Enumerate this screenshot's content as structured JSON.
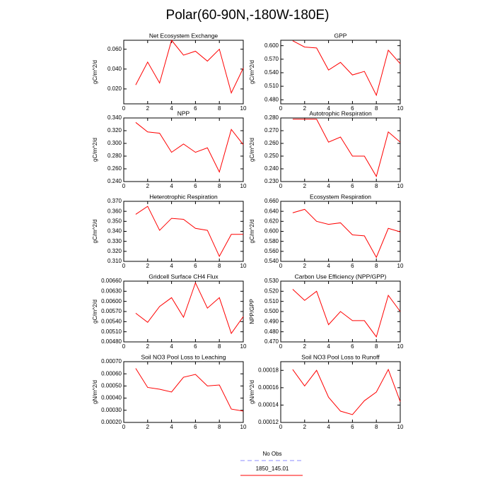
{
  "title": "Polar(60-90N,-180W-180E)",
  "legend": [
    {
      "name": "No Obs",
      "color": "#8c8cff",
      "dashed": true
    },
    {
      "name": "1850_145.01",
      "color": "#ff0000",
      "dashed": false
    }
  ],
  "chart_data": [
    {
      "type": "line",
      "title": "Net Ecosystem Exchange",
      "y_label": "gC/m^2/d",
      "x": [
        1,
        2,
        3,
        4,
        5,
        6,
        7,
        8,
        9,
        10
      ],
      "xlim": [
        0,
        10
      ],
      "xticks": [
        0,
        2,
        4,
        6,
        8,
        10
      ],
      "ylim": [
        0.005,
        0.069
      ],
      "yticks": [
        {
          "value": 0.02,
          "label": "0.020"
        },
        {
          "value": 0.04,
          "label": "0.040"
        },
        {
          "value": 0.06,
          "label": "0.060"
        }
      ],
      "color": "#ff0000",
      "values": [
        0.024,
        0.047,
        0.026,
        0.069,
        0.054,
        0.058,
        0.048,
        0.06,
        0.016,
        0.041
      ]
    },
    {
      "type": "line",
      "title": "GPP",
      "y_label": "gC/m^2/d",
      "x": [
        1,
        2,
        3,
        4,
        5,
        6,
        7,
        8,
        9,
        10
      ],
      "xlim": [
        0,
        10
      ],
      "xticks": [
        0,
        2,
        4,
        6,
        8,
        10
      ],
      "ylim": [
        0.471,
        0.612
      ],
      "yticks": [
        {
          "value": 0.48,
          "label": "0.480"
        },
        {
          "value": 0.51,
          "label": "0.510"
        },
        {
          "value": 0.54,
          "label": "0.540"
        },
        {
          "value": 0.57,
          "label": "0.570"
        },
        {
          "value": 0.6,
          "label": "0.600"
        }
      ],
      "color": "#ff0000",
      "values": [
        0.611,
        0.597,
        0.595,
        0.546,
        0.563,
        0.535,
        0.543,
        0.49,
        0.59,
        0.56
      ]
    },
    {
      "type": "line",
      "title": "NPP",
      "y_label": "gC/m^2/d",
      "x": [
        1,
        2,
        3,
        4,
        5,
        6,
        7,
        8,
        9,
        10
      ],
      "xlim": [
        0,
        10
      ],
      "xticks": [
        0,
        2,
        4,
        6,
        8,
        10
      ],
      "ylim": [
        0.24,
        0.34
      ],
      "yticks": [
        {
          "value": 0.24,
          "label": "0.240"
        },
        {
          "value": 0.26,
          "label": "0.260"
        },
        {
          "value": 0.28,
          "label": "0.280"
        },
        {
          "value": 0.3,
          "label": "0.300"
        },
        {
          "value": 0.32,
          "label": "0.320"
        },
        {
          "value": 0.34,
          "label": "0.340"
        }
      ],
      "color": "#ff0000",
      "values": [
        0.333,
        0.318,
        0.316,
        0.286,
        0.299,
        0.286,
        0.293,
        0.255,
        0.322,
        0.298
      ]
    },
    {
      "type": "line",
      "title": "Autotrophic Respiration",
      "y_label": "gC/m^2/d",
      "x": [
        1,
        2,
        3,
        4,
        5,
        6,
        7,
        8,
        9,
        10
      ],
      "xlim": [
        0,
        10
      ],
      "xticks": [
        0,
        2,
        4,
        6,
        8,
        10
      ],
      "ylim": [
        0.23,
        0.28
      ],
      "yticks": [
        {
          "value": 0.23,
          "label": "0.230"
        },
        {
          "value": 0.24,
          "label": "0.240"
        },
        {
          "value": 0.25,
          "label": "0.250"
        },
        {
          "value": 0.26,
          "label": "0.260"
        },
        {
          "value": 0.27,
          "label": "0.270"
        },
        {
          "value": 0.28,
          "label": "0.280"
        }
      ],
      "color": "#ff0000",
      "values": [
        0.279,
        0.279,
        0.279,
        0.261,
        0.265,
        0.25,
        0.25,
        0.234,
        0.269,
        0.261
      ]
    },
    {
      "type": "line",
      "title": "Heterotrophic Respiration",
      "y_label": "gC/m^2/d",
      "x": [
        1,
        2,
        3,
        4,
        5,
        6,
        7,
        8,
        9,
        10
      ],
      "xlim": [
        0,
        10
      ],
      "xticks": [
        0,
        2,
        4,
        6,
        8,
        10
      ],
      "ylim": [
        0.31,
        0.37
      ],
      "yticks": [
        {
          "value": 0.31,
          "label": "0.310"
        },
        {
          "value": 0.32,
          "label": "0.320"
        },
        {
          "value": 0.33,
          "label": "0.330"
        },
        {
          "value": 0.34,
          "label": "0.340"
        },
        {
          "value": 0.35,
          "label": "0.350"
        },
        {
          "value": 0.36,
          "label": "0.360"
        },
        {
          "value": 0.37,
          "label": "0.370"
        }
      ],
      "color": "#ff0000",
      "values": [
        0.357,
        0.365,
        0.341,
        0.353,
        0.352,
        0.343,
        0.341,
        0.315,
        0.337,
        0.337
      ]
    },
    {
      "type": "line",
      "title": "Ecosystem Respiration",
      "y_label": "gC/m^2/d",
      "x": [
        1,
        2,
        3,
        4,
        5,
        6,
        7,
        8,
        9,
        10
      ],
      "xlim": [
        0,
        10
      ],
      "xticks": [
        0,
        2,
        4,
        6,
        8,
        10
      ],
      "ylim": [
        0.54,
        0.66
      ],
      "yticks": [
        {
          "value": 0.54,
          "label": "0.540"
        },
        {
          "value": 0.56,
          "label": "0.560"
        },
        {
          "value": 0.58,
          "label": "0.580"
        },
        {
          "value": 0.6,
          "label": "0.600"
        },
        {
          "value": 0.62,
          "label": "0.620"
        },
        {
          "value": 0.64,
          "label": "0.640"
        },
        {
          "value": 0.66,
          "label": "0.660"
        }
      ],
      "color": "#ff0000",
      "values": [
        0.637,
        0.644,
        0.62,
        0.614,
        0.617,
        0.593,
        0.591,
        0.548,
        0.606,
        0.599
      ]
    },
    {
      "type": "line",
      "title": "Gridcell Surface CH4 Flux",
      "y_label": "gC/m^2/d",
      "x": [
        1,
        2,
        3,
        4,
        5,
        6,
        7,
        8,
        9,
        10
      ],
      "xlim": [
        0,
        10
      ],
      "xticks": [
        0,
        2,
        4,
        6,
        8,
        10
      ],
      "ylim": [
        0.0048,
        0.0066
      ],
      "yticks": [
        {
          "value": 0.0048,
          "label": "0.00480"
        },
        {
          "value": 0.0051,
          "label": "0.00510"
        },
        {
          "value": 0.0054,
          "label": "0.00540"
        },
        {
          "value": 0.0057,
          "label": "0.00570"
        },
        {
          "value": 0.006,
          "label": "0.00600"
        },
        {
          "value": 0.0063,
          "label": "0.00630"
        },
        {
          "value": 0.0066,
          "label": "0.00660"
        }
      ],
      "color": "#ff0000",
      "values": [
        0.00565,
        0.00538,
        0.00585,
        0.00611,
        0.00553,
        0.00655,
        0.0058,
        0.00611,
        0.00505,
        0.00555
      ]
    },
    {
      "type": "line",
      "title": "Carbon Use Efficiency (NPP/GPP)",
      "y_label": "NPP/GPP",
      "x": [
        1,
        2,
        3,
        4,
        5,
        6,
        7,
        8,
        9,
        10
      ],
      "xlim": [
        0,
        10
      ],
      "xticks": [
        0,
        2,
        4,
        6,
        8,
        10
      ],
      "ylim": [
        0.47,
        0.53
      ],
      "yticks": [
        {
          "value": 0.47,
          "label": "0.470"
        },
        {
          "value": 0.48,
          "label": "0.480"
        },
        {
          "value": 0.49,
          "label": "0.490"
        },
        {
          "value": 0.5,
          "label": "0.500"
        },
        {
          "value": 0.51,
          "label": "0.510"
        },
        {
          "value": 0.52,
          "label": "0.520"
        },
        {
          "value": 0.53,
          "label": "0.530"
        }
      ],
      "color": "#ff0000",
      "values": [
        0.522,
        0.511,
        0.52,
        0.487,
        0.5,
        0.491,
        0.491,
        0.475,
        0.516,
        0.5
      ]
    },
    {
      "type": "line",
      "title": "Soil NO3 Pool Loss to Leaching",
      "y_label": "gN/m^2/d",
      "x": [
        1,
        2,
        3,
        4,
        5,
        6,
        7,
        8,
        9,
        10
      ],
      "xlim": [
        0,
        10
      ],
      "xticks": [
        0,
        2,
        4,
        6,
        8,
        10
      ],
      "ylim": [
        0.0002,
        0.0007
      ],
      "yticks": [
        {
          "value": 0.0002,
          "label": "0.00020"
        },
        {
          "value": 0.0003,
          "label": "0.00030"
        },
        {
          "value": 0.0004,
          "label": "0.00040"
        },
        {
          "value": 0.0005,
          "label": "0.00050"
        },
        {
          "value": 0.0006,
          "label": "0.00060"
        },
        {
          "value": 0.0007,
          "label": "0.00070"
        }
      ],
      "color": "#ff0000",
      "values": [
        0.000645,
        0.000488,
        0.000473,
        0.00045,
        0.000572,
        0.000595,
        0.0005,
        0.000508,
        0.00031,
        0.000293
      ]
    },
    {
      "type": "line",
      "title": "Soil NO3 Pool Loss to Runoff",
      "y_label": "gN/m^2/d",
      "x": [
        1,
        2,
        3,
        4,
        5,
        6,
        7,
        8,
        9,
        10
      ],
      "xlim": [
        0,
        10
      ],
      "xticks": [
        0,
        2,
        4,
        6,
        8,
        10
      ],
      "ylim": [
        0.00012,
        0.00019
      ],
      "yticks": [
        {
          "value": 0.00012,
          "label": "0.00012"
        },
        {
          "value": 0.00014,
          "label": "0.00014"
        },
        {
          "value": 0.00016,
          "label": "0.00016"
        },
        {
          "value": 0.00018,
          "label": "0.00018"
        }
      ],
      "color": "#ff0000",
      "values": [
        0.000181,
        0.000162,
        0.00018,
        0.000149,
        0.000133,
        0.000129,
        0.000145,
        0.000155,
        0.000181,
        0.000144
      ]
    }
  ]
}
